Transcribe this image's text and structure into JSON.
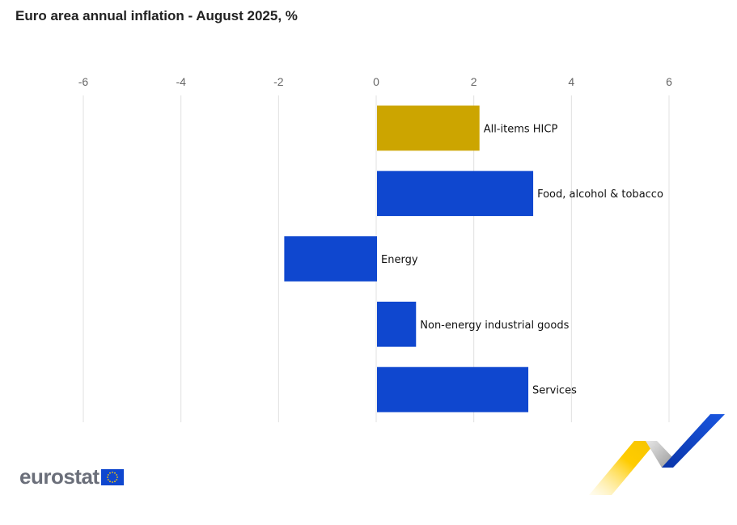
{
  "title": "Euro area annual inflation - August 2025, %",
  "logo": {
    "text": "eurostat"
  },
  "colors": {
    "highlight": "#cca500",
    "bar": "#0f47cf",
    "grid": "#e0e0e0"
  },
  "chart_data": {
    "type": "bar",
    "orientation": "horizontal",
    "title": "Euro area annual inflation - August 2025, %",
    "xlim": [
      -6,
      6
    ],
    "xticks": [
      -6,
      -4,
      -2,
      0,
      2,
      4,
      6
    ],
    "tick_labels": [
      "-6",
      "-4",
      "-2",
      "0",
      "2",
      "4",
      "6"
    ],
    "x_axis_position": "top",
    "grid": true,
    "categories": [
      "All-items HICP",
      "Food, alcohol & tobacco",
      "Energy",
      "Non-energy industrial goods",
      "Services"
    ],
    "values": [
      2.1,
      3.2,
      -1.9,
      0.8,
      3.1
    ],
    "highlight": [
      "All-items HICP"
    ]
  }
}
